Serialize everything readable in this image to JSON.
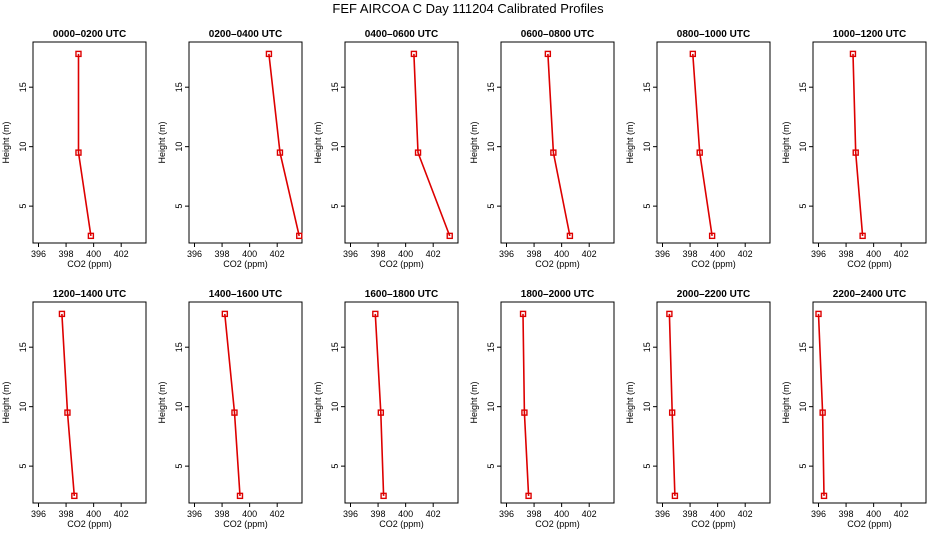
{
  "figure_title": "FEF AIRCOA C  Day 111204  Calibrated Profiles",
  "colors": {
    "series": "#dd0000",
    "axis": "#000000",
    "background": "#ffffff"
  },
  "chart_data": [
    {
      "type": "line",
      "title": "0000–0200 UTC",
      "xlabel": "CO2 (ppm)",
      "ylabel": "Height (m)",
      "xlim": [
        395.6,
        403.8
      ],
      "ylim": [
        1.9,
        18.8
      ],
      "xticks": [
        396,
        398,
        400,
        402
      ],
      "yticks": [
        5,
        10,
        15
      ],
      "x": [
        398.9,
        398.9,
        399.8
      ],
      "y": [
        17.8,
        9.5,
        2.5
      ]
    },
    {
      "type": "line",
      "title": "0200–0400 UTC",
      "xlabel": "CO2 (ppm)",
      "ylabel": "Height (m)",
      "xlim": [
        395.6,
        403.8
      ],
      "ylim": [
        1.9,
        18.8
      ],
      "xticks": [
        396,
        398,
        400,
        402
      ],
      "yticks": [
        5,
        10,
        15
      ],
      "x": [
        401.4,
        402.2,
        403.6
      ],
      "y": [
        17.8,
        9.5,
        2.5
      ]
    },
    {
      "type": "line",
      "title": "0400–0600 UTC",
      "xlabel": "CO2 (ppm)",
      "ylabel": "Height (m)",
      "xlim": [
        395.6,
        403.8
      ],
      "ylim": [
        1.9,
        18.8
      ],
      "xticks": [
        396,
        398,
        400,
        402
      ],
      "yticks": [
        5,
        10,
        15
      ],
      "x": [
        400.6,
        400.9,
        403.2
      ],
      "y": [
        17.8,
        9.5,
        2.5
      ]
    },
    {
      "type": "line",
      "title": "0600–0800 UTC",
      "xlabel": "CO2 (ppm)",
      "ylabel": "Height (m)",
      "xlim": [
        395.6,
        403.8
      ],
      "ylim": [
        1.9,
        18.8
      ],
      "xticks": [
        396,
        398,
        400,
        402
      ],
      "yticks": [
        5,
        10,
        15
      ],
      "x": [
        399.0,
        399.4,
        400.6
      ],
      "y": [
        17.8,
        9.5,
        2.5
      ]
    },
    {
      "type": "line",
      "title": "0800–1000 UTC",
      "xlabel": "CO2 (ppm)",
      "ylabel": "Height (m)",
      "xlim": [
        395.6,
        403.8
      ],
      "ylim": [
        1.9,
        18.8
      ],
      "xticks": [
        396,
        398,
        400,
        402
      ],
      "yticks": [
        5,
        10,
        15
      ],
      "x": [
        398.2,
        398.7,
        399.6
      ],
      "y": [
        17.8,
        9.5,
        2.5
      ]
    },
    {
      "type": "line",
      "title": "1000–1200 UTC",
      "xlabel": "CO2 (ppm)",
      "ylabel": "Height (m)",
      "xlim": [
        395.6,
        403.8
      ],
      "ylim": [
        1.9,
        18.8
      ],
      "xticks": [
        396,
        398,
        400,
        402
      ],
      "yticks": [
        5,
        10,
        15
      ],
      "x": [
        398.5,
        398.7,
        399.2
      ],
      "y": [
        17.8,
        9.5,
        2.5
      ]
    },
    {
      "type": "line",
      "title": "1200–1400 UTC",
      "xlabel": "CO2 (ppm)",
      "ylabel": "Height (m)",
      "xlim": [
        395.6,
        403.8
      ],
      "ylim": [
        1.9,
        18.8
      ],
      "xticks": [
        396,
        398,
        400,
        402
      ],
      "yticks": [
        5,
        10,
        15
      ],
      "x": [
        397.7,
        398.1,
        398.6
      ],
      "y": [
        17.8,
        9.5,
        2.5
      ]
    },
    {
      "type": "line",
      "title": "1400–1600 UTC",
      "xlabel": "CO2 (ppm)",
      "ylabel": "Height (m)",
      "xlim": [
        395.6,
        403.8
      ],
      "ylim": [
        1.9,
        18.8
      ],
      "xticks": [
        396,
        398,
        400,
        402
      ],
      "yticks": [
        5,
        10,
        15
      ],
      "x": [
        398.2,
        398.9,
        399.3
      ],
      "y": [
        17.8,
        9.5,
        2.5
      ]
    },
    {
      "type": "line",
      "title": "1600–1800 UTC",
      "xlabel": "CO2 (ppm)",
      "ylabel": "Height (m)",
      "xlim": [
        395.6,
        403.8
      ],
      "ylim": [
        1.9,
        18.8
      ],
      "xticks": [
        396,
        398,
        400,
        402
      ],
      "yticks": [
        5,
        10,
        15
      ],
      "x": [
        397.8,
        398.2,
        398.4
      ],
      "y": [
        17.8,
        9.5,
        2.5
      ]
    },
    {
      "type": "line",
      "title": "1800–2000 UTC",
      "xlabel": "CO2 (ppm)",
      "ylabel": "Height (m)",
      "xlim": [
        395.6,
        403.8
      ],
      "ylim": [
        1.9,
        18.8
      ],
      "xticks": [
        396,
        398,
        400,
        402
      ],
      "yticks": [
        5,
        10,
        15
      ],
      "x": [
        397.2,
        397.3,
        397.6
      ],
      "y": [
        17.8,
        9.5,
        2.5
      ]
    },
    {
      "type": "line",
      "title": "2000–2200 UTC",
      "xlabel": "CO2 (ppm)",
      "ylabel": "Height (m)",
      "xlim": [
        395.6,
        403.8
      ],
      "ylim": [
        1.9,
        18.8
      ],
      "xticks": [
        396,
        398,
        400,
        402
      ],
      "yticks": [
        5,
        10,
        15
      ],
      "x": [
        396.5,
        396.7,
        396.9
      ],
      "y": [
        17.8,
        9.5,
        2.5
      ]
    },
    {
      "type": "line",
      "title": "2200–2400 UTC",
      "xlabel": "CO2 (ppm)",
      "ylabel": "Height (m)",
      "xlim": [
        395.6,
        403.8
      ],
      "ylim": [
        1.9,
        18.8
      ],
      "xticks": [
        396,
        398,
        400,
        402
      ],
      "yticks": [
        5,
        10,
        15
      ],
      "x": [
        396.0,
        396.3,
        396.4
      ],
      "y": [
        17.8,
        9.5,
        2.5
      ]
    }
  ]
}
